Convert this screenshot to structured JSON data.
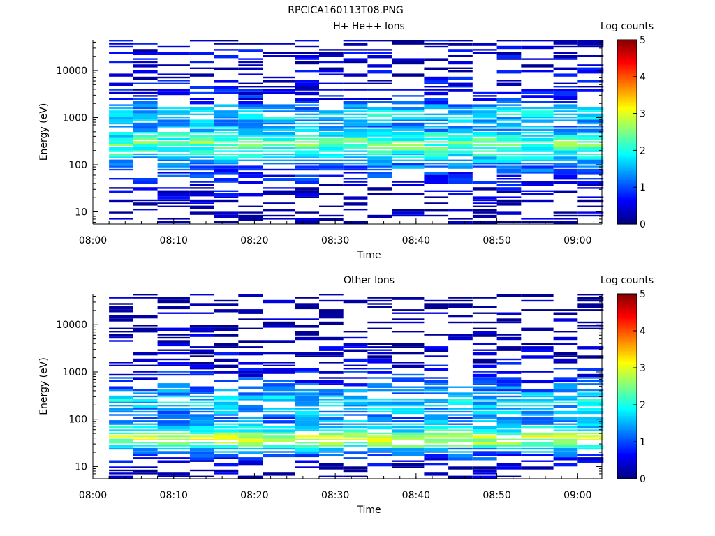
{
  "figure_title": "RPCICA160113T08.PNG",
  "chart_data": [
    {
      "type": "heatmap",
      "title": "H+ He++ Ions",
      "xlabel": "Time",
      "ylabel": "Energy (eV)",
      "yscale": "log",
      "ylim": [
        5.5,
        45000
      ],
      "xlim": [
        "08:00",
        "09:03"
      ],
      "xticks": [
        "08:00",
        "08:10",
        "08:20",
        "08:30",
        "08:40",
        "08:50",
        "09:00"
      ],
      "yticks": [
        "10",
        "100",
        "1000",
        "10000"
      ],
      "colorbar": {
        "label": "Log counts",
        "range": [
          0,
          5
        ],
        "ticks": [
          "0",
          "1",
          "2",
          "3",
          "4",
          "5"
        ]
      },
      "grid": false,
      "time_bins_start": [
        "08:02",
        "08:05",
        "08:08",
        "08:12",
        "08:15",
        "08:18",
        "08:21",
        "08:25",
        "08:28",
        "08:31",
        "08:34",
        "08:37",
        "08:41",
        "08:44",
        "08:47",
        "08:50",
        "08:53",
        "08:57",
        "09:00"
      ],
      "counts_profile_log": [
        {
          "energy_eV": 10,
          "log_counts": 0.2
        },
        {
          "energy_eV": 18,
          "log_counts": 0.3
        },
        {
          "energy_eV": 35,
          "log_counts": 0.5
        },
        {
          "energy_eV": 60,
          "log_counts": 0.8
        },
        {
          "energy_eV": 100,
          "log_counts": 1.3
        },
        {
          "energy_eV": 200,
          "log_counts": 2.1
        },
        {
          "energy_eV": 300,
          "log_counts": 2.4
        },
        {
          "energy_eV": 600,
          "log_counts": 1.3
        },
        {
          "energy_eV": 1200,
          "log_counts": 1.8
        },
        {
          "energy_eV": 2500,
          "log_counts": 0.6
        },
        {
          "energy_eV": 10000,
          "log_counts": 0.4
        },
        {
          "energy_eV": 40000,
          "log_counts": 0.4
        }
      ]
    },
    {
      "type": "heatmap",
      "title": "Other Ions",
      "xlabel": "Time",
      "ylabel": "Energy (eV)",
      "yscale": "log",
      "ylim": [
        5.5,
        45000
      ],
      "xlim": [
        "08:00",
        "09:03"
      ],
      "xticks": [
        "08:00",
        "08:10",
        "08:20",
        "08:30",
        "08:40",
        "08:50",
        "09:00"
      ],
      "yticks": [
        "10",
        "100",
        "1000",
        "10000"
      ],
      "colorbar": {
        "label": "Log counts",
        "range": [
          0,
          5
        ],
        "ticks": [
          "0",
          "1",
          "2",
          "3",
          "4",
          "5"
        ]
      },
      "grid": false,
      "time_bins_start": [
        "08:02",
        "08:05",
        "08:08",
        "08:12",
        "08:15",
        "08:18",
        "08:21",
        "08:25",
        "08:28",
        "08:31",
        "08:34",
        "08:37",
        "08:41",
        "08:44",
        "08:47",
        "08:50",
        "08:53",
        "08:57",
        "09:00"
      ],
      "counts_profile_log": [
        {
          "energy_eV": 10,
          "log_counts": 0.2
        },
        {
          "energy_eV": 22,
          "log_counts": 1.4
        },
        {
          "energy_eV": 30,
          "log_counts": 2.6
        },
        {
          "energy_eV": 40,
          "log_counts": 2.9
        },
        {
          "energy_eV": 55,
          "log_counts": 2.0
        },
        {
          "energy_eV": 100,
          "log_counts": 1.2
        },
        {
          "energy_eV": 250,
          "log_counts": 1.7
        },
        {
          "energy_eV": 400,
          "log_counts": 1.2
        },
        {
          "energy_eV": 1500,
          "log_counts": 0.4
        },
        {
          "energy_eV": 10000,
          "log_counts": 0.1
        }
      ]
    }
  ]
}
